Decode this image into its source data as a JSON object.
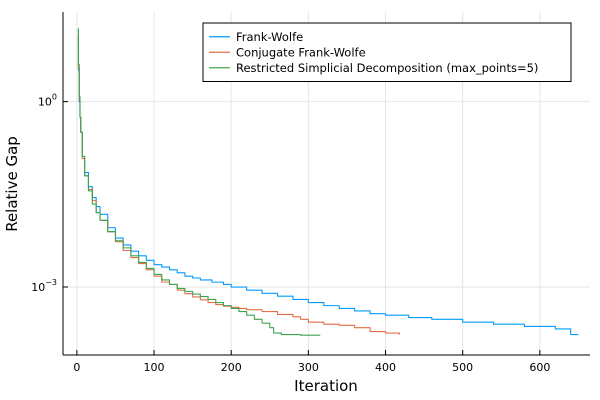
{
  "chart_data": {
    "type": "line",
    "title": "",
    "xlabel": "Iteration",
    "ylabel": "Relative Gap",
    "xlim": [
      -18,
      665
    ],
    "ylim_log10": [
      -4.1,
      1.45
    ],
    "y_scale": "log10",
    "grid": true,
    "legend_position": "top-right",
    "x_ticks": [
      {
        "value": 0,
        "label": "0"
      },
      {
        "value": 100,
        "label": "100"
      },
      {
        "value": 200,
        "label": "200"
      },
      {
        "value": 300,
        "label": "300"
      },
      {
        "value": 400,
        "label": "400"
      },
      {
        "value": 500,
        "label": "500"
      },
      {
        "value": 600,
        "label": "600"
      }
    ],
    "y_ticks": [
      {
        "exp": 0,
        "base": "10",
        "sup": "0"
      },
      {
        "exp": -3,
        "base": "10",
        "sup": "−3"
      }
    ],
    "series": [
      {
        "name": "Frank-Wolfe",
        "color": "#009AFA",
        "points": [
          [
            1,
            10
          ],
          [
            2,
            3.2
          ],
          [
            3,
            1
          ],
          [
            4,
            0.56
          ],
          [
            5,
            0.32
          ],
          [
            7,
            0.13
          ],
          [
            10,
            0.071
          ],
          [
            15,
            0.042
          ],
          [
            20,
            0.028
          ],
          [
            25,
            0.02
          ],
          [
            30,
            0.015
          ],
          [
            40,
            0.0091
          ],
          [
            50,
            0.0062
          ],
          [
            60,
            0.0048
          ],
          [
            70,
            0.0038
          ],
          [
            80,
            0.0032
          ],
          [
            90,
            0.0027
          ],
          [
            100,
            0.0023
          ],
          [
            110,
            0.0021
          ],
          [
            120,
            0.0019
          ],
          [
            130,
            0.0017
          ],
          [
            140,
            0.0015
          ],
          [
            150,
            0.0014
          ],
          [
            160,
            0.0013
          ],
          [
            175,
            0.0012
          ],
          [
            190,
            0.0011
          ],
          [
            200,
            0.001
          ],
          [
            220,
            0.00089
          ],
          [
            240,
            0.00079
          ],
          [
            260,
            0.00071
          ],
          [
            280,
            0.00063
          ],
          [
            300,
            0.00056
          ],
          [
            320,
            0.0005
          ],
          [
            340,
            0.00045
          ],
          [
            360,
            0.00041
          ],
          [
            380,
            0.00037
          ],
          [
            400,
            0.00035
          ],
          [
            430,
            0.00032
          ],
          [
            460,
            0.0003
          ],
          [
            500,
            0.00027
          ],
          [
            540,
            0.00025
          ],
          [
            580,
            0.00023
          ],
          [
            620,
            0.00021
          ],
          [
            640,
            0.00017
          ],
          [
            650,
            0.00017
          ]
        ]
      },
      {
        "name": "Conjugate Frank-Wolfe",
        "color": "#E26F46",
        "points": [
          [
            1,
            12
          ],
          [
            2,
            3.5
          ],
          [
            3,
            1.1
          ],
          [
            4,
            0.56
          ],
          [
            5,
            0.32
          ],
          [
            7,
            0.12
          ],
          [
            10,
            0.063
          ],
          [
            15,
            0.038
          ],
          [
            20,
            0.025
          ],
          [
            25,
            0.016
          ],
          [
            30,
            0.012
          ],
          [
            40,
            0.0078
          ],
          [
            50,
            0.0054
          ],
          [
            60,
            0.0039
          ],
          [
            70,
            0.003
          ],
          [
            80,
            0.0024
          ],
          [
            90,
            0.0019
          ],
          [
            100,
            0.0015
          ],
          [
            110,
            0.0012
          ],
          [
            120,
            0.0011
          ],
          [
            130,
            0.00089
          ],
          [
            140,
            0.00078
          ],
          [
            150,
            0.00069
          ],
          [
            160,
            0.00062
          ],
          [
            170,
            0.00056
          ],
          [
            180,
            0.00052
          ],
          [
            190,
            0.00049
          ],
          [
            200,
            0.00047
          ],
          [
            210,
            0.00045
          ],
          [
            220,
            0.00043
          ],
          [
            240,
            0.0004
          ],
          [
            260,
            0.00036
          ],
          [
            280,
            0.00033
          ],
          [
            290,
            0.0003
          ],
          [
            300,
            0.00027
          ],
          [
            320,
            0.00025
          ],
          [
            340,
            0.00024
          ],
          [
            360,
            0.00022
          ],
          [
            380,
            0.00019
          ],
          [
            400,
            0.00018
          ],
          [
            418,
            0.00017
          ]
        ]
      },
      {
        "name": "Restricted Simplicial Decomposition (max_points=5)",
        "color": "#3DA44E",
        "points": [
          [
            1,
            15
          ],
          [
            2,
            4
          ],
          [
            3,
            1.2
          ],
          [
            4,
            0.56
          ],
          [
            5,
            0.32
          ],
          [
            7,
            0.13
          ],
          [
            10,
            0.063
          ],
          [
            15,
            0.036
          ],
          [
            20,
            0.022
          ],
          [
            25,
            0.016
          ],
          [
            30,
            0.012
          ],
          [
            40,
            0.0079
          ],
          [
            50,
            0.0056
          ],
          [
            60,
            0.0043
          ],
          [
            70,
            0.0032
          ],
          [
            80,
            0.0025
          ],
          [
            90,
            0.002
          ],
          [
            100,
            0.0016
          ],
          [
            110,
            0.0013
          ],
          [
            120,
            0.0011
          ],
          [
            130,
            0.00095
          ],
          [
            140,
            0.00085
          ],
          [
            150,
            0.00077
          ],
          [
            160,
            0.0007
          ],
          [
            170,
            0.00063
          ],
          [
            180,
            0.00056
          ],
          [
            190,
            0.0005
          ],
          [
            200,
            0.00045
          ],
          [
            210,
            0.0004
          ],
          [
            220,
            0.00035
          ],
          [
            230,
            0.0003
          ],
          [
            240,
            0.00026
          ],
          [
            250,
            0.00022
          ],
          [
            255,
            0.00018
          ],
          [
            265,
            0.00017
          ],
          [
            290,
            0.000166
          ],
          [
            315,
            0.000165
          ]
        ]
      }
    ]
  }
}
